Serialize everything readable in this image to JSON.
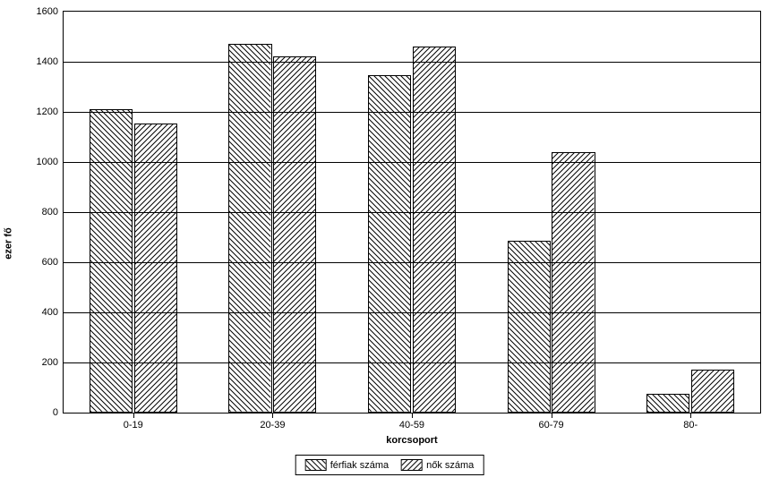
{
  "chart": {
    "type": "bar",
    "y_axis": {
      "label": "ezer fő",
      "label_fontsize": 11,
      "min": 0,
      "max": 1600,
      "tick_step": 200,
      "ticks": [
        0,
        200,
        400,
        600,
        800,
        1000,
        1200,
        1400,
        1600
      ]
    },
    "x_axis": {
      "label": "korcsoport",
      "label_fontsize": 11,
      "categories": [
        "0-19",
        "20-39",
        "40-59",
        "60-79",
        "80-"
      ]
    },
    "series": [
      {
        "name": "férfiak száma",
        "pattern": "diag-down",
        "pattern_color": "#000000",
        "fill_background": "#ffffff",
        "values": [
          1210,
          1470,
          1345,
          685,
          75
        ]
      },
      {
        "name": "nők száma",
        "pattern": "diag-up",
        "pattern_color": "#000000",
        "fill_background": "#ffffff",
        "values": [
          1155,
          1420,
          1460,
          1040,
          170
        ]
      }
    ],
    "layout": {
      "bar_width_pct": 31,
      "bar_gap_pct": 1,
      "plot_border_color": "#000000",
      "grid_color": "#000000",
      "background_color": "#ffffff",
      "pattern_spacing": 6,
      "pattern_stroke_width": 1
    },
    "legend": {
      "position": "bottom-center",
      "border_color": "#000000",
      "items": [
        {
          "label": "férfiak száma",
          "pattern": "diag-down"
        },
        {
          "label": "nők száma",
          "pattern": "diag-up"
        }
      ]
    }
  }
}
